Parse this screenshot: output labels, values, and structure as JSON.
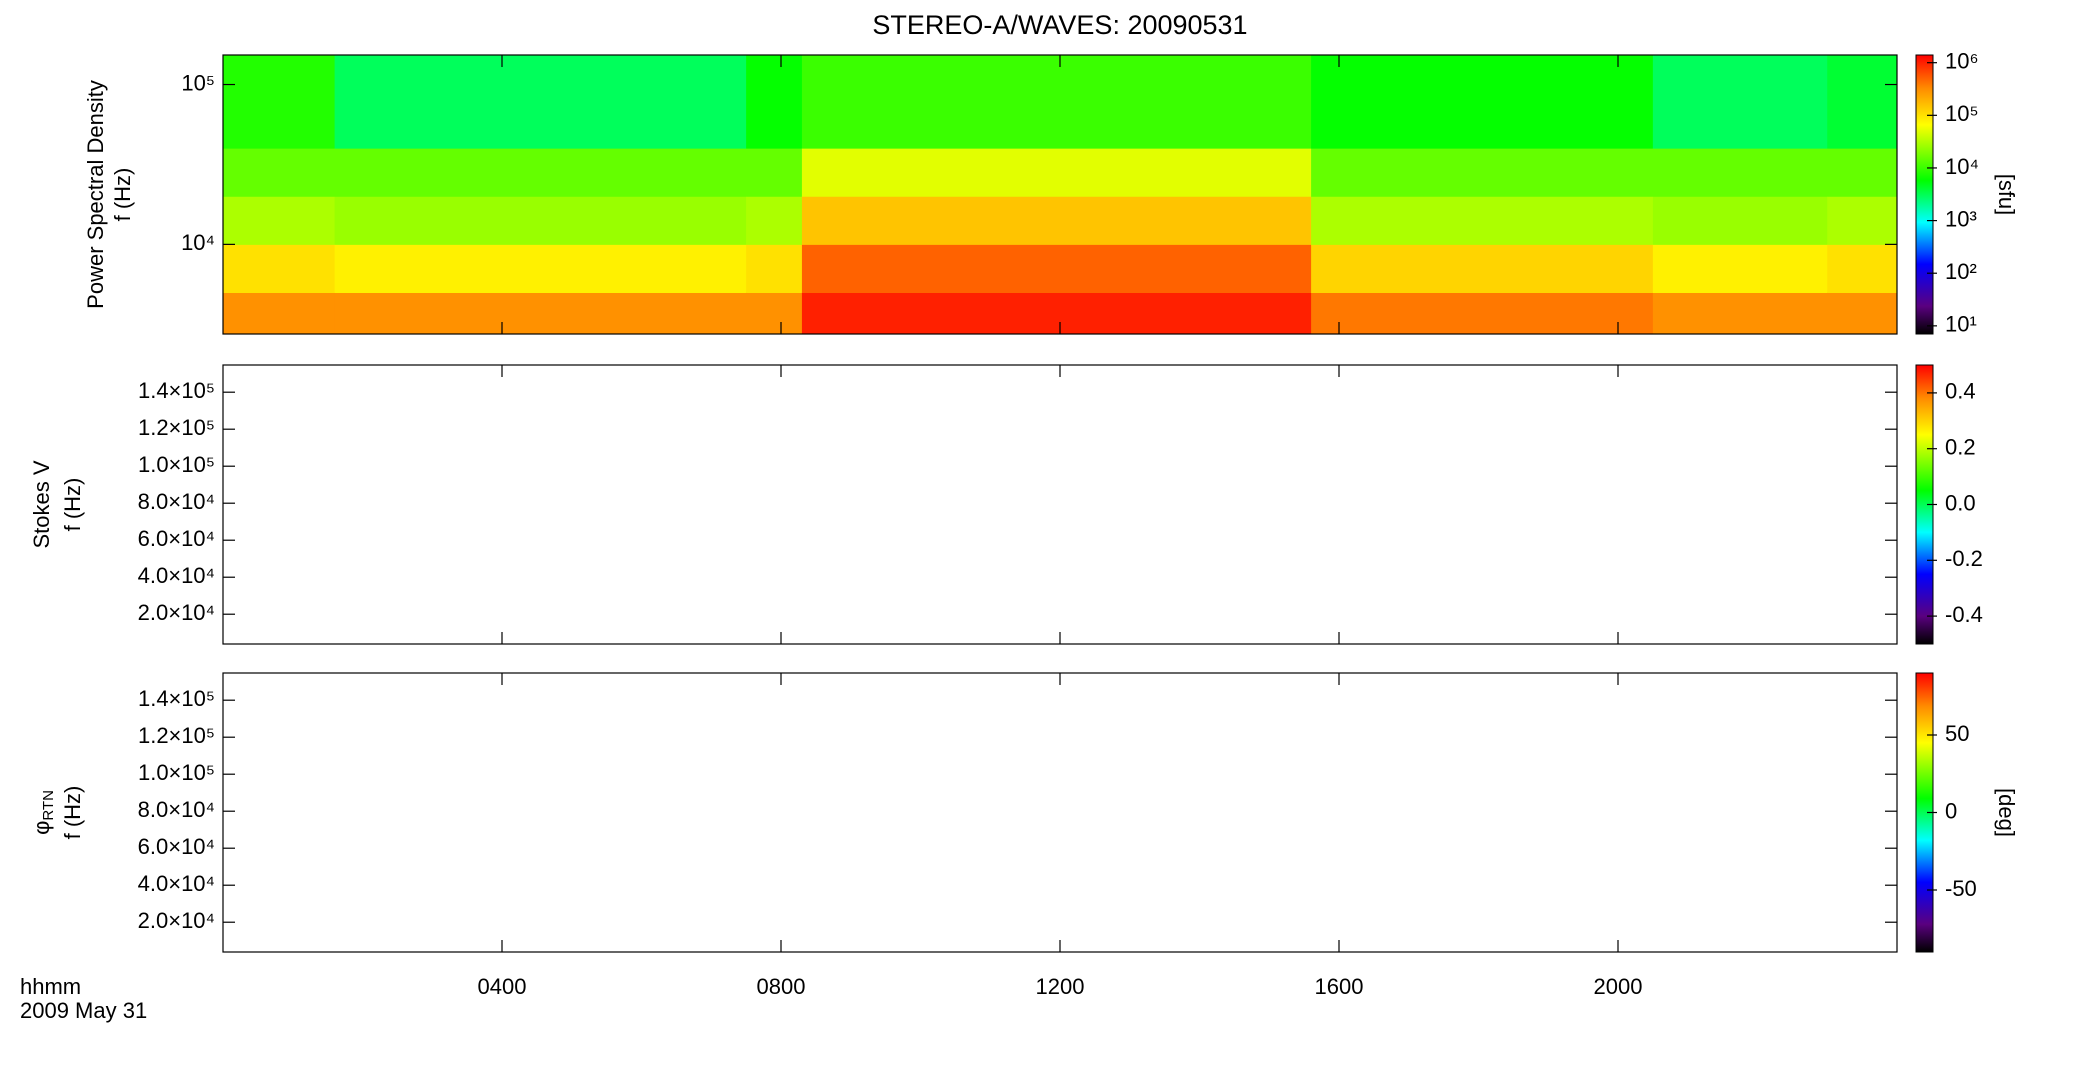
{
  "chart_data": [
    {
      "type": "heatmap",
      "title": "STEREO-A/WAVES: 20090531",
      "ylabel": "Power Spectral Density",
      "ylabel2": "f (Hz)",
      "log_y": true,
      "ylim": [
        2750,
        153000
      ],
      "yticks": [
        {
          "value": 10000,
          "label": "10⁴"
        },
        {
          "value": 100000,
          "label": "10⁵"
        }
      ],
      "x_bins": [
        0,
        1.6,
        7.5,
        8.3,
        15.6,
        20.5,
        23,
        24
      ],
      "y_bins": [
        2750,
        5000,
        10000,
        20000,
        40000,
        153000
      ],
      "z": [
        [
          300000,
          100000,
          30000,
          15000,
          8000
        ],
        [
          300000,
          80000,
          25000,
          15000,
          3000
        ],
        [
          300000,
          100000,
          30000,
          15000,
          6000
        ],
        [
          1000000,
          500000,
          150000,
          50000,
          10000
        ],
        [
          400000,
          120000,
          30000,
          15000,
          6000
        ],
        [
          300000,
          80000,
          25000,
          15000,
          3000
        ],
        [
          300000,
          100000,
          30000,
          15000,
          4000
        ]
      ],
      "clim": [
        7,
        1400000
      ],
      "log_c": true,
      "colorbar_label": "[sfu]",
      "cticks": [
        {
          "value": 10,
          "label": "10¹"
        },
        {
          "value": 100,
          "label": "10²"
        },
        {
          "value": 1000,
          "label": "10³"
        },
        {
          "value": 10000,
          "label": "10⁴"
        },
        {
          "value": 100000,
          "label": "10⁵"
        },
        {
          "value": 1000000,
          "label": "10⁶"
        }
      ]
    },
    {
      "type": "heatmap",
      "ylabel": "Stokes V",
      "ylabel2": "f (Hz)",
      "ylim": [
        3900,
        154700
      ],
      "yticks": [
        {
          "value": 20000,
          "label": "2.0×10⁴"
        },
        {
          "value": 40000,
          "label": "4.0×10⁴"
        },
        {
          "value": 60000,
          "label": "6.0×10⁴"
        },
        {
          "value": 80000,
          "label": "8.0×10⁴"
        },
        {
          "value": 100000,
          "label": "1.0×10⁵"
        },
        {
          "value": 120000,
          "label": "1.2×10⁵"
        },
        {
          "value": 140000,
          "label": "1.4×10⁵"
        }
      ],
      "clim": [
        -0.5,
        0.5
      ],
      "cticks": [
        -0.4,
        -0.2,
        {
          "value": 0,
          "label": "0.0"
        },
        0.2,
        0.4
      ]
    },
    {
      "type": "heatmap",
      "ylabel": "φ",
      "ylabel_sub": "RTN",
      "ylabel2": "f (Hz)",
      "ylim": [
        3900,
        154700
      ],
      "yticks": [
        {
          "value": 20000,
          "label": "2.0×10⁴"
        },
        {
          "value": 40000,
          "label": "4.0×10⁴"
        },
        {
          "value": 60000,
          "label": "6.0×10⁴"
        },
        {
          "value": 80000,
          "label": "8.0×10⁴"
        },
        {
          "value": 100000,
          "label": "1.0×10⁵"
        },
        {
          "value": 120000,
          "label": "1.2×10⁵"
        },
        {
          "value": 140000,
          "label": "1.4×10⁵"
        }
      ],
      "clim": [
        -90,
        90
      ],
      "colorbar_label": "[deg]",
      "cticks": [
        -50,
        0,
        50
      ],
      "xlim": [
        0,
        24
      ],
      "xticks": [
        {
          "value": 4,
          "label": "0400"
        },
        {
          "value": 8,
          "label": "0800"
        },
        {
          "value": 12,
          "label": "1200"
        },
        {
          "value": 16,
          "label": "1600"
        },
        {
          "value": 20,
          "label": "2000"
        }
      ],
      "xlabel": "hhmm",
      "date": "2009 May 31"
    }
  ]
}
